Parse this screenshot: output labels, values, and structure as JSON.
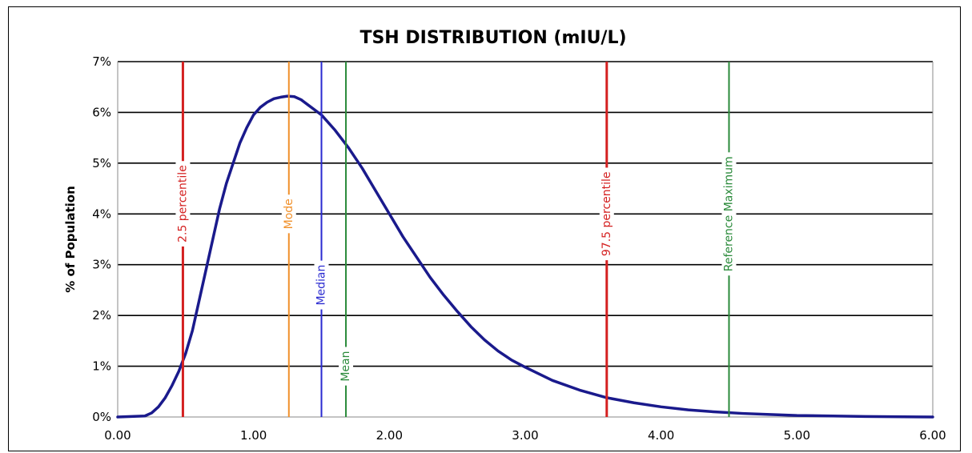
{
  "chart_data": {
    "type": "line",
    "title": "TSH DISTRIBUTION (mIU/L)",
    "xlabel": "",
    "ylabel": "% of Population",
    "xlim": [
      0,
      6
    ],
    "ylim": [
      0,
      7
    ],
    "grid": true,
    "x_ticks": [
      "0.00",
      "1.00",
      "2.00",
      "3.00",
      "4.00",
      "5.00",
      "6.00"
    ],
    "y_ticks": [
      "0%",
      "1%",
      "2%",
      "3%",
      "4%",
      "5%",
      "6%",
      "7%"
    ],
    "series": [
      {
        "color": "#1a1a8c",
        "x": [
          0,
          0.2,
          0.25,
          0.3,
          0.35,
          0.4,
          0.45,
          0.5,
          0.55,
          0.6,
          0.65,
          0.7,
          0.75,
          0.8,
          0.85,
          0.9,
          0.95,
          1.0,
          1.05,
          1.1,
          1.15,
          1.2,
          1.25,
          1.3,
          1.35,
          1.4,
          1.45,
          1.5,
          1.6,
          1.7,
          1.8,
          1.9,
          2.0,
          2.1,
          2.2,
          2.3,
          2.4,
          2.5,
          2.6,
          2.7,
          2.8,
          2.9,
          3.0,
          3.2,
          3.4,
          3.6,
          3.8,
          4.0,
          4.2,
          4.4,
          4.6,
          4.8,
          5.0,
          5.5,
          6.0
        ],
        "y": [
          0,
          0.02,
          0.08,
          0.2,
          0.38,
          0.62,
          0.9,
          1.25,
          1.7,
          2.3,
          2.9,
          3.5,
          4.1,
          4.6,
          5.0,
          5.4,
          5.7,
          5.95,
          6.1,
          6.2,
          6.27,
          6.3,
          6.32,
          6.31,
          6.25,
          6.15,
          6.05,
          5.95,
          5.65,
          5.3,
          4.9,
          4.45,
          4.0,
          3.55,
          3.15,
          2.75,
          2.4,
          2.08,
          1.78,
          1.52,
          1.3,
          1.12,
          0.98,
          0.72,
          0.53,
          0.38,
          0.28,
          0.2,
          0.14,
          0.1,
          0.07,
          0.05,
          0.03,
          0.01,
          0.0
        ]
      }
    ],
    "reference_lines": [
      {
        "label": "2.5 percentile",
        "x": 0.48,
        "color": "#d42020"
      },
      {
        "label": "Mode",
        "x": 1.26,
        "color": "#f0902a"
      },
      {
        "label": "Median",
        "x": 1.5,
        "color": "#2a2ad0"
      },
      {
        "label": "Mean",
        "x": 1.68,
        "color": "#2a8a3a"
      },
      {
        "label": "97.5 percentile",
        "x": 3.6,
        "color": "#d42020"
      },
      {
        "label": "Reference Maximum",
        "x": 4.5,
        "color": "#2a8a3a"
      }
    ]
  }
}
